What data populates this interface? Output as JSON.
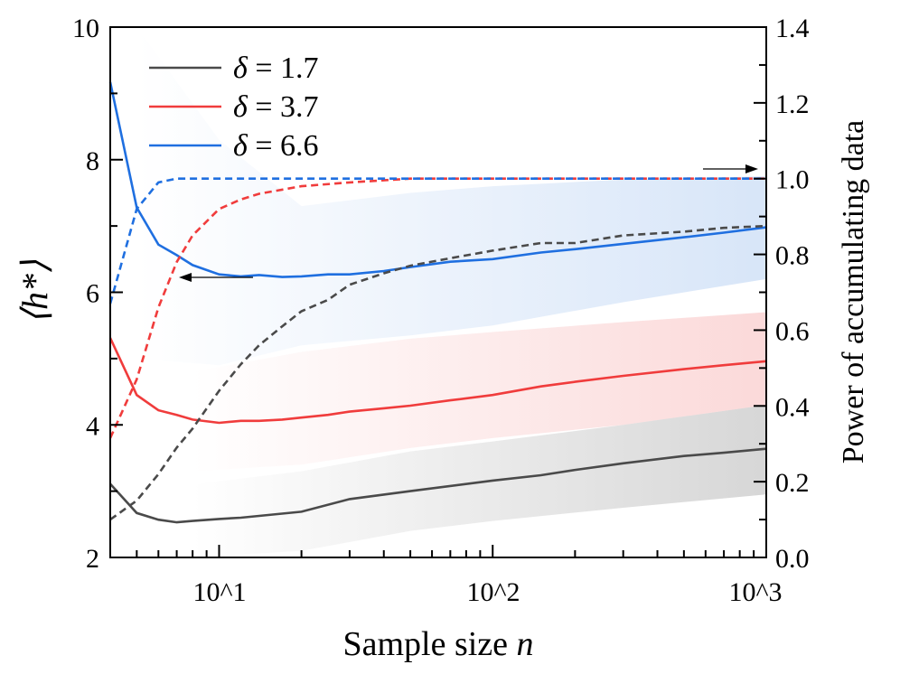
{
  "chart_data": {
    "type": "line",
    "xlabel": "Sample size n",
    "ylabel_left": "⟨h*⟩",
    "ylabel_right": "Power of accumulating data",
    "x_scale": "log",
    "xlim": [
      4,
      1000
    ],
    "ylim_left": [
      2,
      10
    ],
    "ylim_right": [
      0,
      1.4
    ],
    "x_ticks": [
      "10^1",
      "10^2",
      "10^3"
    ],
    "y_ticks_left": [
      "2",
      "4",
      "6",
      "8",
      "10"
    ],
    "y_ticks_right": [
      "0.0",
      "0.2",
      "0.4",
      "0.6",
      "0.8",
      "1.0",
      "1.2",
      "1.4"
    ],
    "legend_position": "top-left",
    "series": [
      {
        "name": "δ = 1.7",
        "color": "#4a4a4a",
        "axis": "left",
        "x": [
          4,
          5,
          6,
          7,
          8,
          10,
          12,
          20,
          30,
          50,
          100,
          150,
          200,
          300,
          500,
          700,
          1000
        ],
        "y": [
          3.11,
          2.67,
          2.57,
          2.53,
          2.55,
          2.58,
          2.6,
          2.69,
          2.88,
          3.0,
          3.16,
          3.24,
          3.32,
          3.42,
          3.53,
          3.58,
          3.64
        ]
      },
      {
        "name": "δ = 3.7",
        "color": "#f03c3c",
        "axis": "left",
        "x": [
          4,
          5,
          6,
          7,
          8,
          10,
          12,
          14,
          17,
          20,
          25,
          30,
          40,
          50,
          70,
          100,
          150,
          200,
          300,
          500,
          700,
          1000
        ],
        "y": [
          5.31,
          4.45,
          4.22,
          4.15,
          4.08,
          4.03,
          4.06,
          4.06,
          4.08,
          4.11,
          4.15,
          4.2,
          4.25,
          4.29,
          4.37,
          4.45,
          4.58,
          4.65,
          4.74,
          4.84,
          4.9,
          4.96
        ]
      },
      {
        "name": "δ = 6.6",
        "color": "#1f6fe0",
        "axis": "left",
        "x": [
          4,
          5,
          6,
          7,
          8,
          10,
          12,
          14,
          17,
          20,
          25,
          30,
          40,
          50,
          70,
          100,
          150,
          200,
          300,
          500,
          700,
          1000
        ],
        "y": [
          9.17,
          7.28,
          6.72,
          6.56,
          6.41,
          6.27,
          6.24,
          6.26,
          6.23,
          6.24,
          6.27,
          6.27,
          6.32,
          6.38,
          6.46,
          6.5,
          6.6,
          6.65,
          6.73,
          6.83,
          6.9,
          6.98
        ]
      },
      {
        "color": "#4a4a4a",
        "axis": "right",
        "dashed": true,
        "x": [
          4,
          5,
          6,
          7,
          8,
          10,
          12,
          14,
          17,
          20,
          25,
          30,
          40,
          50,
          70,
          100,
          150,
          200,
          300,
          500,
          700,
          1000
        ],
        "y": [
          0.1,
          0.15,
          0.22,
          0.29,
          0.34,
          0.44,
          0.51,
          0.56,
          0.61,
          0.65,
          0.68,
          0.72,
          0.75,
          0.77,
          0.79,
          0.81,
          0.83,
          0.83,
          0.85,
          0.86,
          0.87,
          0.875
        ]
      },
      {
        "color": "#f03c3c",
        "axis": "right",
        "dashed": true,
        "x": [
          4,
          5,
          6,
          7,
          8,
          10,
          12,
          14,
          20,
          30,
          50,
          100,
          1000
        ],
        "y": [
          0.315,
          0.47,
          0.66,
          0.78,
          0.85,
          0.92,
          0.945,
          0.96,
          0.98,
          0.99,
          1.0,
          1.0,
          1.0
        ]
      },
      {
        "color": "#1f6fe0",
        "axis": "right",
        "dashed": true,
        "x": [
          4,
          5,
          6,
          7,
          10,
          1000
        ],
        "y": [
          0.67,
          0.92,
          0.99,
          1.0,
          1.0,
          1.0
        ]
      }
    ],
    "bands": [
      {
        "color": "#9a9a9a",
        "x": [
          8,
          20,
          50,
          100,
          300,
          1000
        ],
        "lower": [
          2.0,
          2.1,
          2.4,
          2.55,
          2.75,
          2.95
        ],
        "upper": [
          3.1,
          3.3,
          3.6,
          3.75,
          4.0,
          4.3
        ]
      },
      {
        "color": "#f5a0a0",
        "x": [
          8,
          20,
          50,
          100,
          300,
          1000
        ],
        "lower": [
          3.3,
          3.4,
          3.65,
          3.8,
          4.0,
          4.3
        ],
        "upper": [
          4.8,
          5.1,
          5.3,
          5.4,
          5.55,
          5.7
        ]
      },
      {
        "color": "#9cbfee",
        "x": [
          5,
          10,
          20,
          50,
          100,
          300,
          1000
        ],
        "lower": [
          5.0,
          4.9,
          5.2,
          5.35,
          5.5,
          5.85,
          6.2
        ],
        "upper": [
          10,
          8.3,
          7.3,
          7.5,
          7.6,
          7.7,
          7.75
        ]
      }
    ]
  }
}
